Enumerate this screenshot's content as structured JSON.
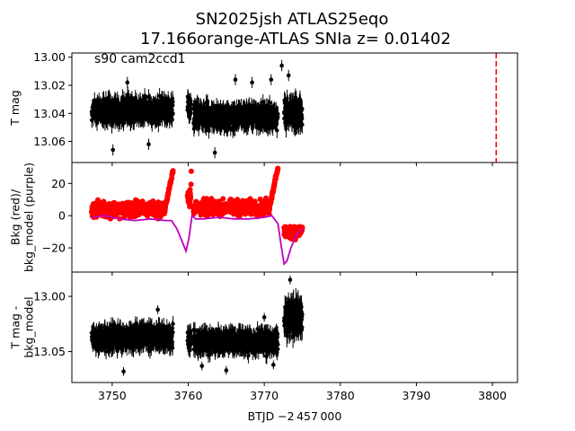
{
  "title_line1": "SN2025jsh  ATLAS25eqo",
  "title_line2": "17.166orange-ATLAS SNIa z= 0.01402",
  "annotation": "s90 cam2ccd1",
  "xlabel": "BTJD −2 457 000",
  "colors": {
    "flux": "#000000",
    "bkg": "#ff0000",
    "bkg_model": "#bf00bf",
    "marker_line": "#ff0000"
  },
  "chart_data": [
    {
      "type": "scatter",
      "panel": "top",
      "ylabel": "T mag",
      "y_inverted": true,
      "xlim": [
        3744.7,
        3803.3
      ],
      "ylim": [
        13.075,
        12.997
      ],
      "yticks": [
        "13.00",
        "13.02",
        "13.04",
        "13.06"
      ],
      "ytick_values": [
        13.0,
        13.02,
        13.04,
        13.06
      ],
      "segments": [
        {
          "x0": 3747.3,
          "x1": 3758.0,
          "center": 13.038,
          "spread": 0.016
        },
        {
          "x0": 3759.9,
          "x1": 3760.4,
          "center": 13.035,
          "spread": 0.015
        },
        {
          "x0": 3760.7,
          "x1": 3771.8,
          "center": 13.042,
          "spread": 0.016
        },
        {
          "x0": 3772.6,
          "x1": 3775.0,
          "center": 13.04,
          "spread": 0.018
        }
      ],
      "outliers": [
        {
          "x": 3750.1,
          "y": 13.066
        },
        {
          "x": 3752.0,
          "y": 13.018
        },
        {
          "x": 3754.8,
          "y": 13.062
        },
        {
          "x": 3763.5,
          "y": 13.068
        },
        {
          "x": 3766.2,
          "y": 13.016
        },
        {
          "x": 3770.9,
          "y": 13.016
        },
        {
          "x": 3772.3,
          "y": 13.006
        },
        {
          "x": 3773.2,
          "y": 13.013
        },
        {
          "x": 3768.4,
          "y": 13.018
        }
      ],
      "vline_x": 3800.5
    },
    {
      "type": "line",
      "panel": "middle",
      "ylabel": "Bkg (red)/\nbkg_model (purple)",
      "xlim": [
        3744.7,
        3803.3
      ],
      "ylim": [
        -35,
        33
      ],
      "yticks": [
        "20",
        "0",
        "−20"
      ],
      "ytick_values": [
        20,
        0,
        -20
      ],
      "series": [
        {
          "role": "bkg",
          "segments": [
            {
              "x0": 3747.3,
              "x1": 3758.0,
              "base": 4,
              "spread": 7,
              "rise_end": 28
            },
            {
              "x0": 3759.9,
              "x1": 3760.4,
              "base": 12,
              "spread": 10,
              "rise_end": 28
            },
            {
              "x0": 3760.7,
              "x1": 3771.8,
              "base": 5,
              "spread": 7,
              "rise_end": 30
            },
            {
              "x0": 3772.6,
              "x1": 3775.0,
              "base": -10,
              "spread": 6,
              "rise_end": -8
            }
          ]
        },
        {
          "role": "bkg_model",
          "x": [
            3747.3,
            3749,
            3751,
            3753,
            3755,
            3757,
            3757.8,
            3758.5,
            3759.2,
            3759.7,
            3760.1,
            3760.5,
            3761,
            3762,
            3764,
            3766,
            3768,
            3770,
            3771,
            3771.8,
            3772.2,
            3772.6,
            3773.0,
            3773.5,
            3774.2,
            3775.0
          ],
          "y": [
            -1,
            0,
            -2,
            -3,
            -2,
            -3,
            -3,
            -8,
            -16,
            -22,
            -14,
            0,
            -2,
            -2,
            -1,
            -2,
            -2,
            -1,
            0,
            -5,
            -18,
            -30,
            -28,
            -20,
            -12,
            -8
          ]
        }
      ]
    },
    {
      "type": "scatter",
      "panel": "bottom",
      "ylabel": "T mag -\nbkg_model",
      "y_inverted": true,
      "xlim": [
        3744.7,
        3803.3
      ],
      "ylim": [
        13.078,
        12.978
      ],
      "yticks": [
        "13.00",
        "13.05"
      ],
      "ytick_values": [
        13.0,
        13.05
      ],
      "xticks": [
        "3750",
        "3760",
        "3770",
        "3780",
        "3790",
        "3800"
      ],
      "xtick_values": [
        3750,
        3760,
        3770,
        3780,
        3790,
        3800
      ],
      "segments": [
        {
          "x0": 3747.3,
          "x1": 3758.0,
          "center": 13.037,
          "spread": 0.02
        },
        {
          "x0": 3759.9,
          "x1": 3760.4,
          "center": 13.04,
          "spread": 0.02
        },
        {
          "x0": 3760.7,
          "x1": 3771.8,
          "center": 13.041,
          "spread": 0.02
        },
        {
          "x0": 3772.6,
          "x1": 3775.0,
          "center": 13.02,
          "spread": 0.03
        }
      ],
      "outliers": [
        {
          "x": 3751.5,
          "y": 13.068
        },
        {
          "x": 3756.0,
          "y": 13.012
        },
        {
          "x": 3761.8,
          "y": 13.063
        },
        {
          "x": 3765.0,
          "y": 13.067
        },
        {
          "x": 3770.0,
          "y": 13.019
        },
        {
          "x": 3773.4,
          "y": 12.985
        },
        {
          "x": 3771.2,
          "y": 13.062
        }
      ]
    }
  ]
}
